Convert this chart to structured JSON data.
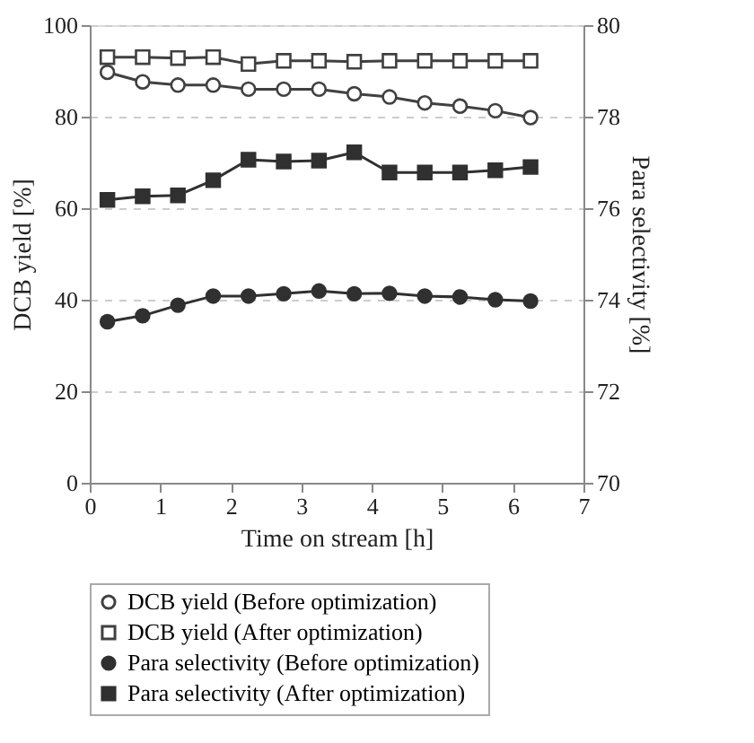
{
  "chart_data": {
    "type": "line",
    "xlabel": "Time on stream [h]",
    "ylabel": "DCB yield [%]",
    "y2label": "Para selectivity [%]",
    "x": [
      0.25,
      0.75,
      1.25,
      1.75,
      2.25,
      2.75,
      3.25,
      3.75,
      4.25,
      4.75,
      5.25,
      5.75,
      6.25
    ],
    "xlim": [
      0,
      7
    ],
    "xticks": [
      0,
      1,
      2,
      3,
      4,
      5,
      6,
      7
    ],
    "ylim": [
      0,
      100
    ],
    "yticks": [
      0,
      20,
      40,
      60,
      80,
      100
    ],
    "y2lim": [
      70,
      80
    ],
    "y2ticks": [
      70,
      72,
      74,
      76,
      78,
      80
    ],
    "grid": "y",
    "legend": "bottom",
    "series": [
      {
        "name": "DCB yield (Before optimization)",
        "color": "#404040",
        "marker": "circle",
        "axis": "y",
        "values": [
          89.7,
          87.6,
          86.9,
          86.9,
          86.0,
          86.0,
          86.0,
          85.0,
          84.3,
          83.0,
          82.3,
          81.3,
          79.8
        ]
      },
      {
        "name": "DCB yield (After optimization)",
        "color": "#404040",
        "marker": "square",
        "axis": "y",
        "values": [
          93.0,
          93.0,
          92.8,
          93.0,
          91.5,
          92.2,
          92.2,
          92.0,
          92.2,
          92.2,
          92.2,
          92.2,
          92.2
        ]
      },
      {
        "name": "Para selectivity (Before optimization)",
        "color": "#303030",
        "marker": "circle",
        "axis": "y2",
        "values": [
          73.52,
          73.65,
          73.88,
          74.08,
          74.08,
          74.13,
          74.19,
          74.13,
          74.14,
          74.08,
          74.06,
          74.0,
          73.97
        ]
      },
      {
        "name": "Para selectivity (After optimization)",
        "color": "#303030",
        "marker": "square",
        "axis": "y2",
        "values": [
          76.18,
          76.26,
          76.28,
          76.61,
          77.06,
          77.02,
          77.04,
          77.22,
          76.78,
          76.78,
          76.78,
          76.83,
          76.9
        ]
      }
    ]
  }
}
